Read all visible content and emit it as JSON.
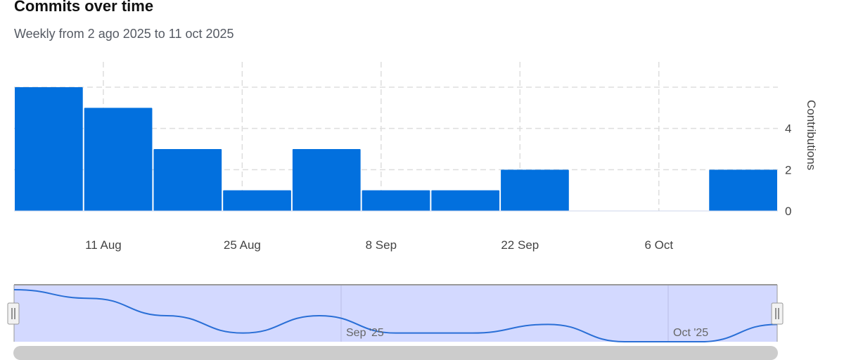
{
  "chart_data": {
    "type": "bar",
    "title": "Commits over time",
    "subtitle": "Weekly from 2 ago 2025 to 11 oct 2025",
    "ylabel": "Contributions",
    "x": [
      "2025-08-02",
      "2025-08-09",
      "2025-08-16",
      "2025-08-23",
      "2025-08-30",
      "2025-09-06",
      "2025-09-13",
      "2025-09-20",
      "2025-09-27",
      "2025-10-04",
      "2025-10-11"
    ],
    "values": [
      6,
      5,
      3,
      1,
      3,
      1,
      1,
      2,
      0,
      0,
      2
    ],
    "x_ticks": [
      {
        "date": "2025-08-11",
        "label": "11 Aug"
      },
      {
        "date": "2025-08-25",
        "label": "25 Aug"
      },
      {
        "date": "2025-09-08",
        "label": "8 Sep"
      },
      {
        "date": "2025-09-22",
        "label": "22 Sep"
      },
      {
        "date": "2025-10-06",
        "label": "6 Oct"
      }
    ],
    "y_ticks": [
      0,
      2,
      4
    ],
    "ylim": [
      0,
      6
    ],
    "grid": true,
    "y_axis_side": "right",
    "bar_color": "#0270de",
    "navigator": {
      "labels": [
        {
          "date": "2025-09-01",
          "label": "Sep '25"
        },
        {
          "date": "2025-10-01",
          "label": "Oct '25"
        }
      ],
      "fill_color": "#d3d9ff",
      "line_color": "#2a6fd6"
    }
  }
}
